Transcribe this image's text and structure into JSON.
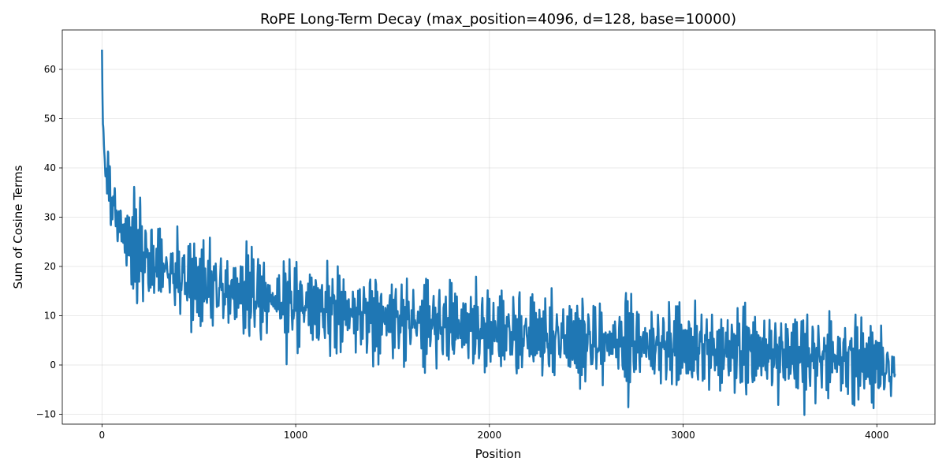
{
  "chart_data": {
    "type": "line",
    "title": "RoPE Long-Term Decay (max_position=4096, d=128, base=10000)",
    "xlabel": "Position",
    "ylabel": "Sum of Cosine Terms",
    "xlim": [
      -205,
      4300
    ],
    "ylim": [
      -12,
      68
    ],
    "xticks": [
      0,
      1000,
      2000,
      3000,
      4000
    ],
    "yticks": [
      -10,
      0,
      10,
      20,
      30,
      40,
      50,
      60
    ],
    "xtick_labels": [
      "0",
      "1000",
      "2000",
      "3000",
      "4000"
    ],
    "ytick_labels": [
      "−10",
      "0",
      "10",
      "20",
      "30",
      "40",
      "50",
      "60"
    ],
    "grid": true,
    "legend": false,
    "series": [
      {
        "color": "#1f77b4",
        "x": [
          0,
          2,
          5,
          10,
          15,
          20,
          30,
          40,
          50,
          60,
          80,
          100,
          120,
          150,
          200,
          250,
          300,
          350,
          400,
          500,
          600,
          700,
          800,
          900,
          1000,
          1100,
          1200,
          1300,
          1400,
          1500,
          1600,
          1700,
          1800,
          1900,
          2000,
          2100,
          2200,
          2300,
          2400,
          2500,
          2600,
          2700,
          2800,
          2900,
          3000,
          3100,
          3200,
          3300,
          3400,
          3500,
          3600,
          3700,
          3800,
          3900,
          4000,
          4095
        ],
        "y": [
          64,
          56,
          48,
          44,
          42,
          40,
          37.5,
          35,
          33.5,
          32,
          29.5,
          27.5,
          26,
          24.5,
          22.5,
          21,
          20,
          19,
          18,
          16.5,
          15.5,
          14.5,
          14,
          13,
          12.5,
          11.5,
          11,
          10.5,
          10,
          9.5,
          9,
          8.5,
          8,
          7.5,
          7,
          6.5,
          6,
          5.5,
          5.5,
          5,
          4.5,
          4.5,
          4,
          4,
          3.5,
          3.5,
          3,
          3,
          2.5,
          2,
          2,
          1.5,
          1.5,
          1,
          0.5,
          -2
        ],
        "noise_band": [
          0,
          1,
          1.5,
          2,
          2.5,
          3,
          3.5,
          4,
          4.5,
          5,
          5.5,
          5.5,
          6,
          6,
          6,
          6,
          6,
          6,
          6,
          6,
          6,
          6,
          6,
          6,
          6,
          6,
          6,
          6,
          6,
          6,
          6,
          6,
          6,
          6,
          6,
          6,
          6,
          6,
          6,
          6,
          6,
          6,
          6,
          6,
          6,
          6,
          6,
          6,
          6,
          6,
          6,
          6,
          6,
          6,
          6,
          4
        ]
      }
    ]
  }
}
